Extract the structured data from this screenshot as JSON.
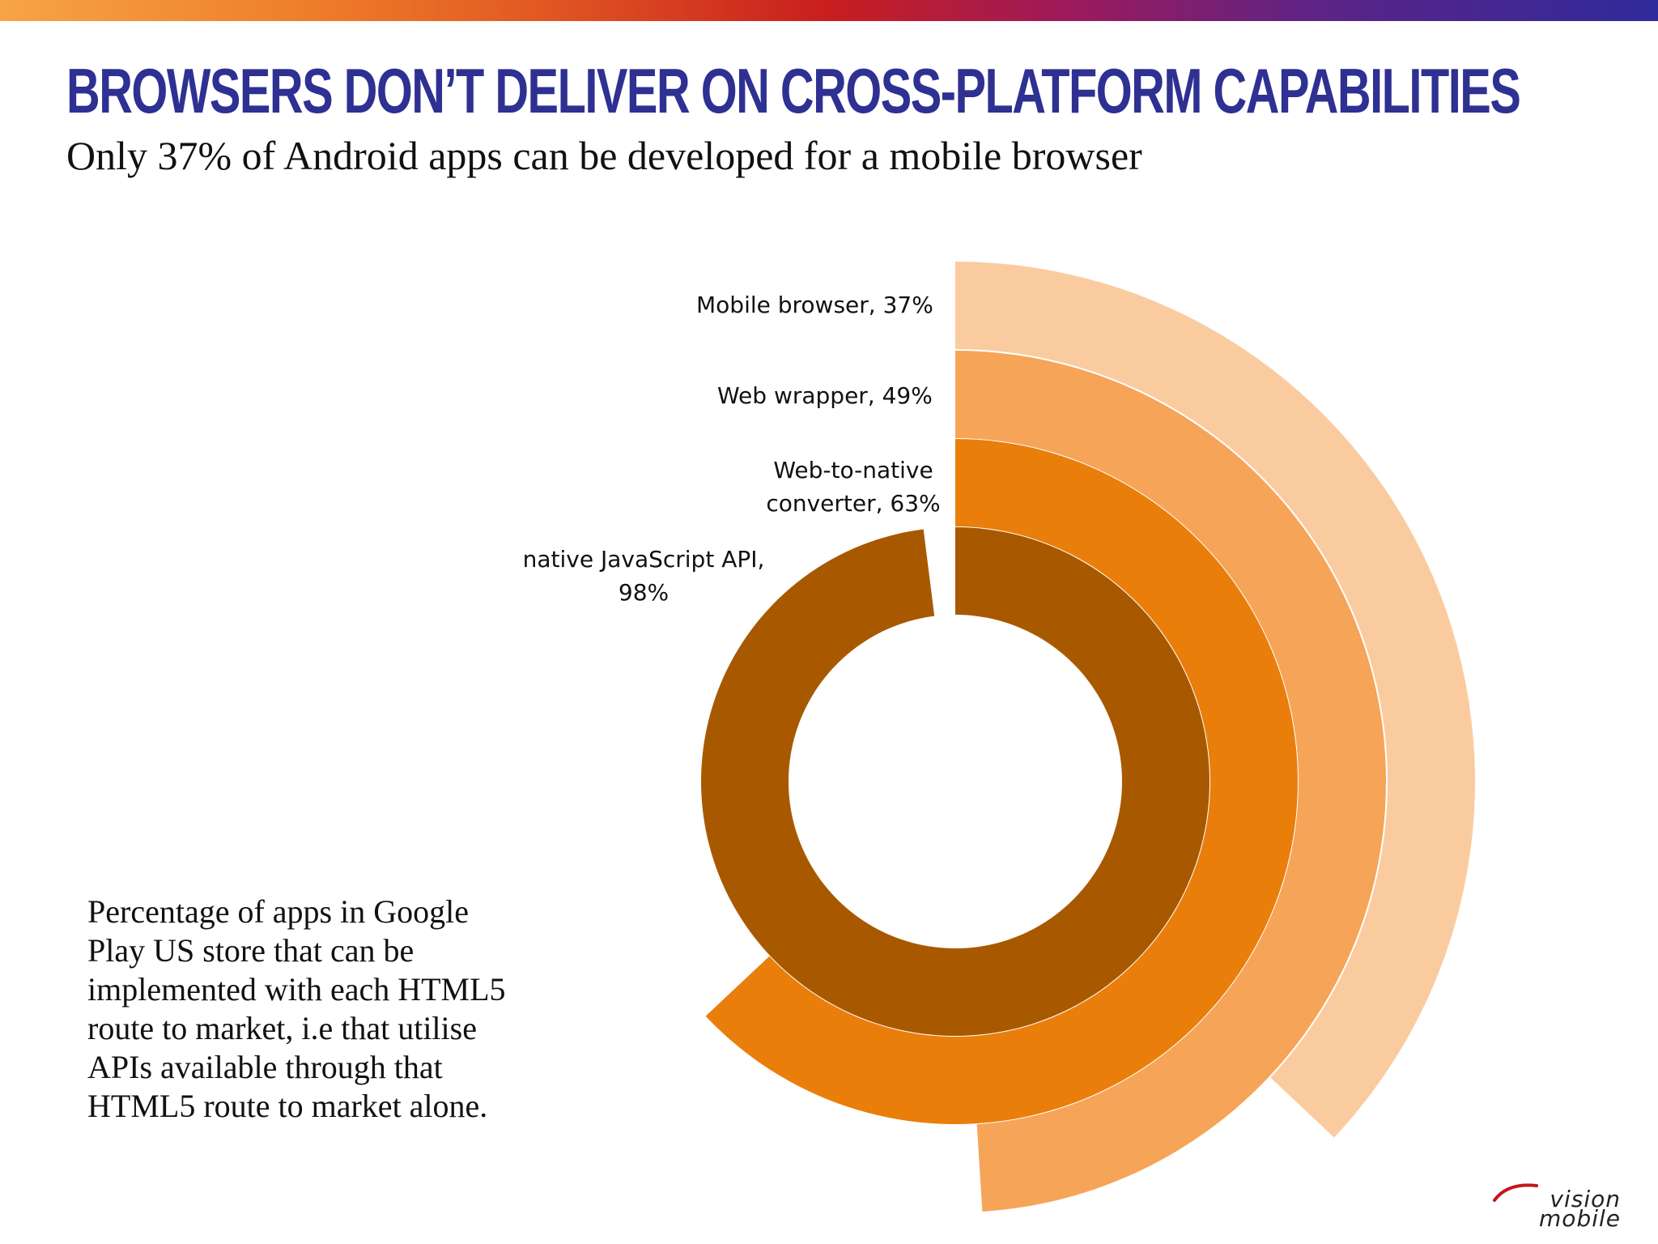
{
  "header": {
    "title": "Browsers don’t deliver on cross-platform capabilities",
    "subtitle": "Only 37% of Android apps can be developed for a mobile browser"
  },
  "chart_data": {
    "type": "radial-bar",
    "title": "Browsers don’t deliver on cross-platform capabilities",
    "categories": [
      "Mobile browser",
      "Web wrapper",
      "Web-to-native converter",
      "native JavaScript API"
    ],
    "values": [
      37,
      49,
      63,
      98
    ],
    "unit": "%",
    "labels": [
      {
        "line1": "Mobile browser, 37%",
        "line2": ""
      },
      {
        "line1": "Web wrapper, 49%",
        "line2": ""
      },
      {
        "line1": "Web-to-native",
        "line2": "converter, 63%"
      },
      {
        "line1": "native JavaScript API,",
        "line2": "98%"
      }
    ],
    "colors": [
      "#fbcba0",
      "#f6a458",
      "#ea7e0b",
      "#a85900"
    ],
    "legend": "labels at ring starts, top"
  },
  "note": {
    "text": "Percentage of apps in Google Play US store that can be implemented with each HTML5 route to market, i.e that utilise APIs available through that HTML5 route to market alone."
  },
  "logo": {
    "line1": "vision",
    "line2": "mobile"
  }
}
